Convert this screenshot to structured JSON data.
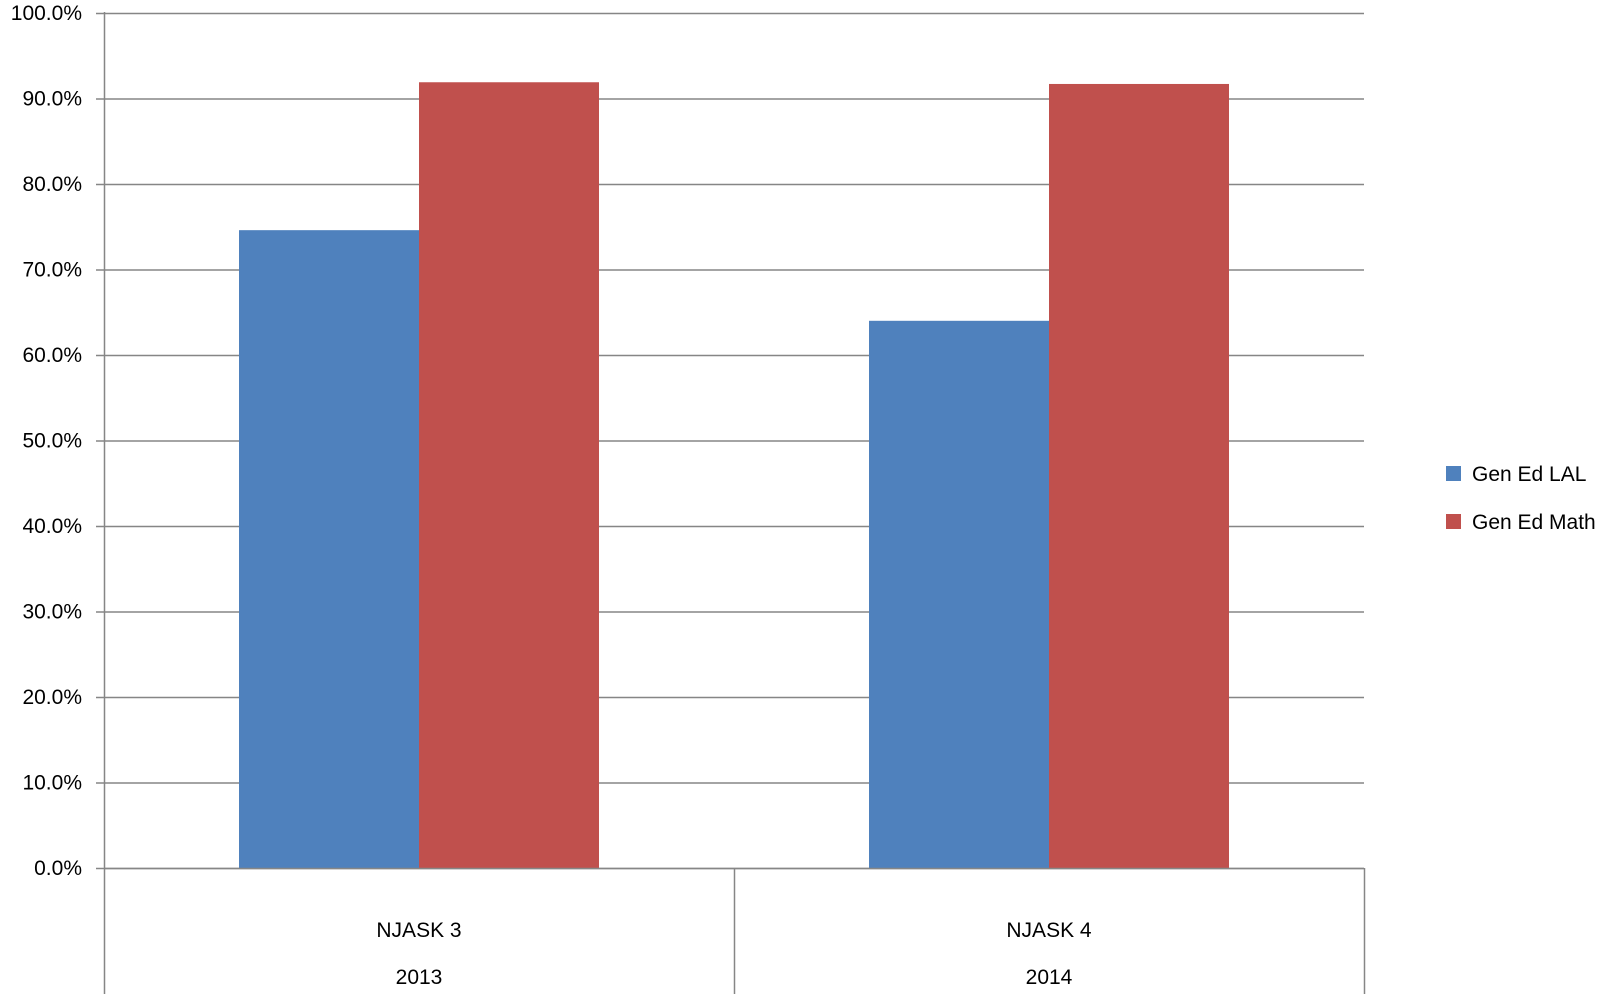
{
  "chart_data": {
    "type": "bar",
    "title": "",
    "xlabel": "",
    "ylabel": "",
    "ylim": [
      0,
      100
    ],
    "y_tick_values": [
      0,
      10,
      20,
      30,
      40,
      50,
      60,
      70,
      80,
      90,
      100
    ],
    "y_tick_labels": [
      "0.0%",
      "10.0%",
      "20.0%",
      "30.0%",
      "40.0%",
      "50.0%",
      "60.0%",
      "70.0%",
      "80.0%",
      "90.0%",
      "100.0%"
    ],
    "categories": [
      {
        "label": "NJASK 3",
        "group": "2013"
      },
      {
        "label": "NJASK 4",
        "group": "2014"
      }
    ],
    "series": [
      {
        "name": "Gen Ed LAL",
        "color": "#4f81bd",
        "values": [
          74.6,
          64.0
        ]
      },
      {
        "name": "Gen Ed Math",
        "color": "#c0504d",
        "values": [
          91.9,
          91.7
        ]
      }
    ],
    "grid": true,
    "legend_position": "right"
  }
}
